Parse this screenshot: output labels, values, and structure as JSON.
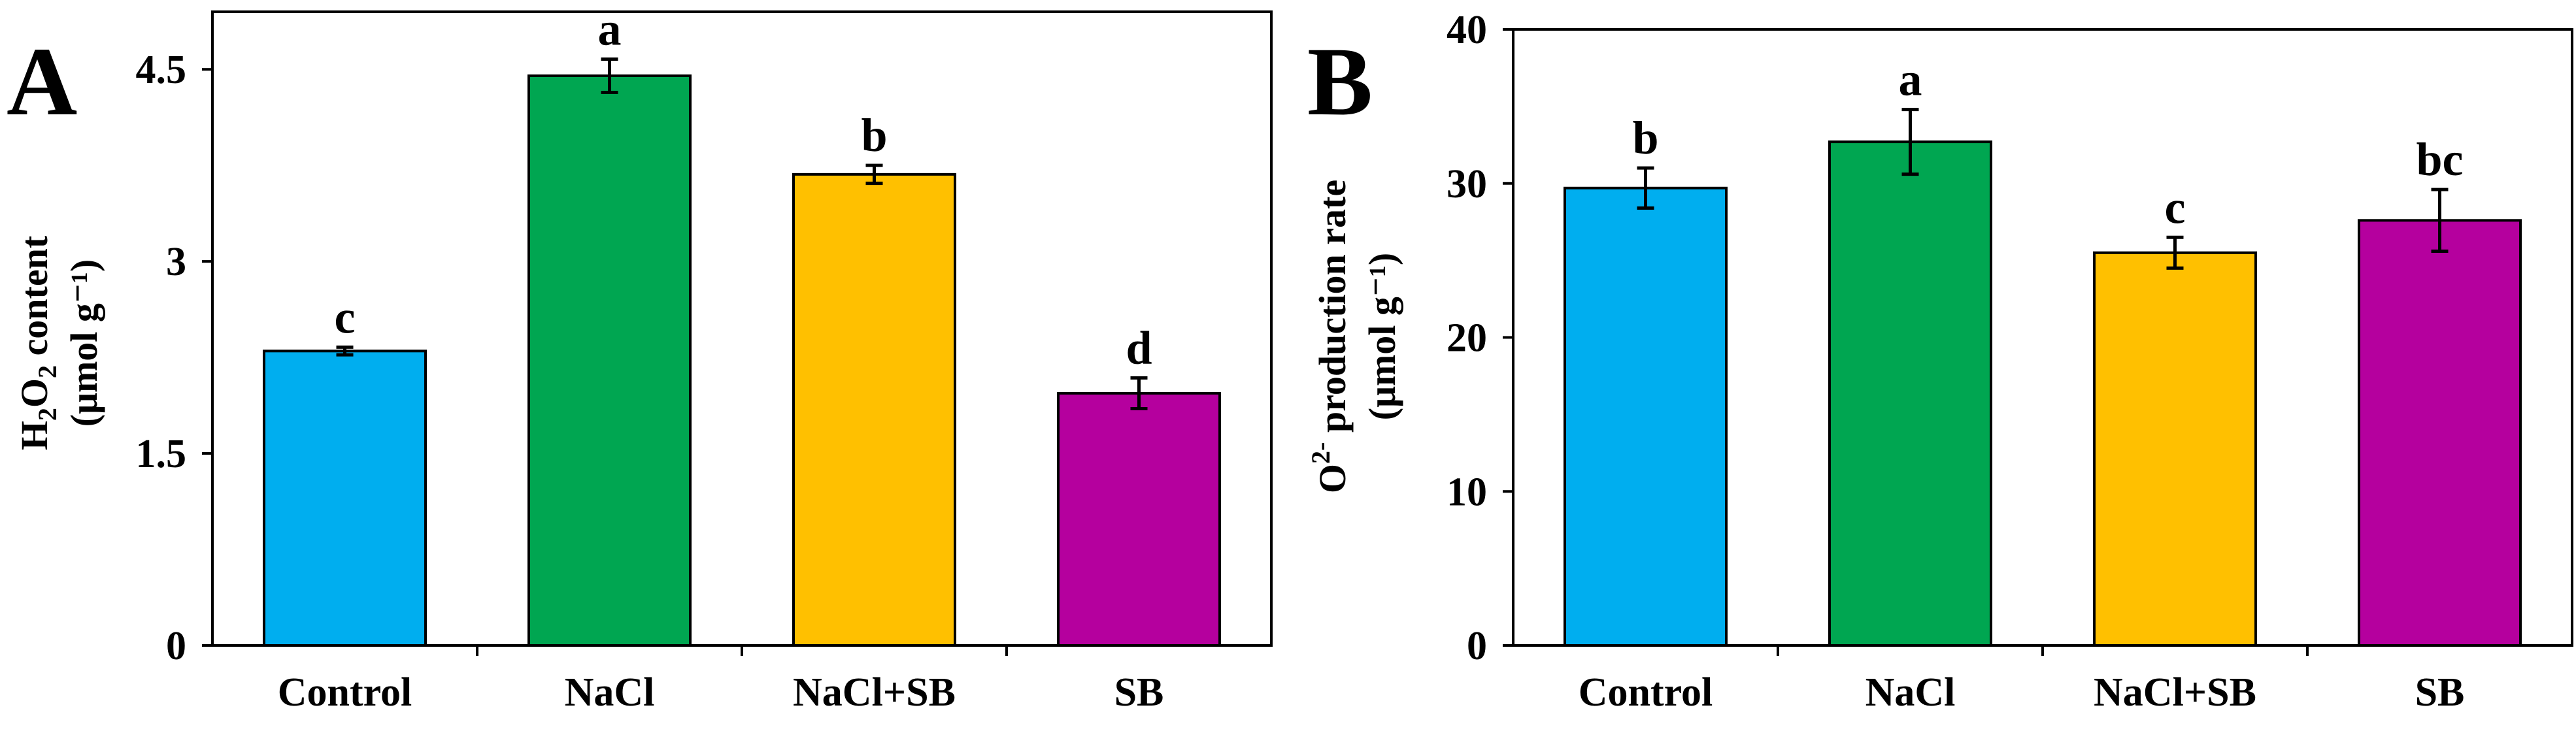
{
  "chart_data": [
    {
      "panel": "A",
      "type": "bar",
      "categories": [
        "Control",
        "NaCl",
        "NaCl+SB",
        "SB"
      ],
      "values": [
        2.3,
        4.45,
        3.68,
        1.97
      ],
      "errors": [
        0.03,
        0.13,
        0.07,
        0.12
      ],
      "letters": [
        "c",
        "a",
        "b",
        "d"
      ],
      "colors": [
        "#00AEEF",
        "#00A651",
        "#FFC000",
        "#B5009E"
      ],
      "ylabel_line1": {
        "prefix": "H",
        "sub1": "2",
        "mid": "O",
        "sub2": "2",
        "suffix": " content"
      },
      "ylabel_line2": "(μmol g⁻¹)",
      "ylim": [
        0,
        4.95
      ],
      "yticks": [
        0,
        1.5,
        3,
        4.5
      ],
      "ytick_labels": [
        "0",
        "1.5",
        "3",
        "4.5"
      ]
    },
    {
      "panel": "B",
      "type": "bar",
      "categories": [
        "Control",
        "NaCl",
        "NaCl+SB",
        "SB"
      ],
      "values": [
        29.7,
        32.7,
        25.5,
        27.6
      ],
      "errors": [
        1.3,
        2.1,
        1.0,
        2.0
      ],
      "letters": [
        "b",
        "a",
        "c",
        "bc"
      ],
      "colors": [
        "#00AEEF",
        "#00A651",
        "#FFC000",
        "#B5009E"
      ],
      "ylabel_line1": {
        "prefix": "O",
        "sup": "2-",
        "suffix": " production rate"
      },
      "ylabel_line2": "(μmol g⁻¹)",
      "ylim": [
        0,
        40
      ],
      "yticks": [
        0,
        10,
        20,
        30,
        40
      ],
      "ytick_labels": [
        "0",
        "10",
        "20",
        "30",
        "40"
      ]
    }
  ]
}
